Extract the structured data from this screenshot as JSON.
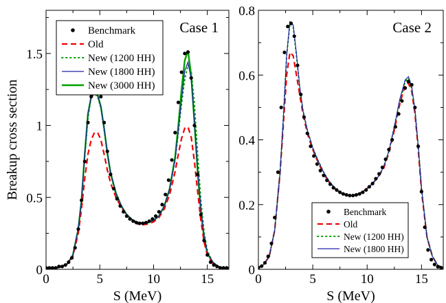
{
  "chart_data": [
    {
      "type": "line",
      "panel_label": "Case 1",
      "xlabel": "S (MeV)",
      "ylabel": "Breakup cross section",
      "xlim": [
        0,
        17
      ],
      "ylim": [
        0,
        1.8
      ],
      "xticks": [
        0,
        5,
        10,
        15
      ],
      "xtick_labels": [
        "0",
        "5",
        "10",
        "15"
      ],
      "yticks": [
        0,
        0.5,
        1,
        1.5
      ],
      "ytick_labels": [
        "0",
        "0.5",
        "1",
        "1.5"
      ],
      "grid": false,
      "legend_position": "top-left",
      "series": [
        {
          "name": "Benchmark",
          "style": "dots",
          "color": "#000000",
          "x": [
            0.0,
            0.3,
            0.6,
            0.9,
            1.2,
            1.5,
            1.8,
            2.1,
            2.4,
            2.7,
            3.0,
            3.3,
            3.6,
            3.9,
            4.2,
            4.5,
            4.8,
            5.1,
            5.4,
            5.7,
            6.0,
            6.3,
            6.6,
            6.9,
            7.2,
            7.5,
            7.8,
            8.1,
            8.4,
            8.7,
            9.0,
            9.3,
            9.6,
            9.9,
            10.2,
            10.5,
            10.8,
            11.1,
            11.4,
            11.7,
            12.0,
            12.3,
            12.6,
            12.9,
            13.2,
            13.5,
            13.8,
            14.1,
            14.4,
            14.7,
            15.0,
            15.3,
            15.6,
            15.9,
            16.2,
            16.5,
            16.8
          ],
          "values": [
            0.01,
            0.01,
            0.01,
            0.01,
            0.02,
            0.02,
            0.03,
            0.05,
            0.08,
            0.15,
            0.28,
            0.48,
            0.75,
            1.02,
            1.2,
            1.26,
            1.27,
            1.2,
            1.02,
            0.82,
            0.66,
            0.56,
            0.49,
            0.44,
            0.4,
            0.37,
            0.35,
            0.335,
            0.325,
            0.32,
            0.32,
            0.325,
            0.335,
            0.35,
            0.37,
            0.4,
            0.45,
            0.52,
            0.62,
            0.76,
            0.95,
            1.16,
            1.37,
            1.5,
            1.51,
            1.33,
            1.0,
            0.66,
            0.38,
            0.2,
            0.1,
            0.05,
            0.03,
            0.02,
            0.01,
            0.01,
            0.01
          ]
        },
        {
          "name": "Old",
          "style": "dashed",
          "color": "#ee0000",
          "x": [
            0.0,
            0.5,
            1.0,
            1.5,
            2.0,
            2.5,
            3.0,
            3.3,
            3.6,
            3.9,
            4.2,
            4.5,
            4.8,
            5.1,
            5.4,
            5.7,
            6.0,
            6.5,
            7.0,
            7.5,
            8.0,
            8.5,
            9.0,
            9.5,
            10.0,
            10.5,
            11.0,
            11.5,
            12.0,
            12.3,
            12.6,
            12.9,
            13.2,
            13.5,
            13.8,
            14.1,
            14.4,
            14.7,
            15.0,
            15.5,
            16.0,
            16.5,
            17.0
          ],
          "values": [
            0.01,
            0.01,
            0.01,
            0.02,
            0.04,
            0.09,
            0.25,
            0.42,
            0.63,
            0.8,
            0.9,
            0.95,
            0.95,
            0.9,
            0.8,
            0.69,
            0.6,
            0.5,
            0.43,
            0.38,
            0.34,
            0.315,
            0.31,
            0.315,
            0.33,
            0.36,
            0.42,
            0.52,
            0.68,
            0.8,
            0.91,
            0.98,
            0.99,
            0.92,
            0.75,
            0.54,
            0.34,
            0.19,
            0.1,
            0.04,
            0.02,
            0.01,
            0.01
          ]
        },
        {
          "name": "New (1200 HH)",
          "style": "dotted",
          "color": "#00a000",
          "x": [
            0.0,
            0.5,
            1.0,
            1.5,
            2.0,
            2.5,
            3.0,
            3.3,
            3.6,
            3.9,
            4.2,
            4.5,
            4.8,
            5.1,
            5.4,
            5.7,
            6.0,
            6.5,
            7.0,
            7.5,
            8.0,
            8.5,
            9.0,
            9.5,
            10.0,
            10.5,
            11.0,
            11.5,
            12.0,
            12.3,
            12.6,
            12.9,
            13.2,
            13.5,
            13.8,
            14.1,
            14.4,
            14.7,
            15.0,
            15.5,
            16.0,
            16.5,
            17.0
          ],
          "values": [
            0.01,
            0.01,
            0.01,
            0.02,
            0.04,
            0.1,
            0.28,
            0.48,
            0.78,
            1.05,
            1.2,
            1.22,
            1.2,
            1.12,
            0.97,
            0.8,
            0.66,
            0.52,
            0.44,
            0.38,
            0.345,
            0.325,
            0.32,
            0.325,
            0.34,
            0.37,
            0.44,
            0.56,
            0.76,
            0.95,
            1.15,
            1.32,
            1.42,
            1.38,
            1.15,
            0.8,
            0.48,
            0.26,
            0.13,
            0.05,
            0.02,
            0.01,
            0.01
          ]
        },
        {
          "name": "New (1800 HH)",
          "style": "solid-thin",
          "color": "#2222aa",
          "x": [
            0.0,
            0.5,
            1.0,
            1.5,
            2.0,
            2.5,
            3.0,
            3.3,
            3.6,
            3.9,
            4.2,
            4.5,
            4.8,
            5.1,
            5.4,
            5.7,
            6.0,
            6.5,
            7.0,
            7.5,
            8.0,
            8.5,
            9.0,
            9.5,
            10.0,
            10.5,
            11.0,
            11.5,
            12.0,
            12.3,
            12.6,
            12.9,
            13.2,
            13.5,
            13.8,
            14.1,
            14.4,
            14.7,
            15.0,
            15.5,
            16.0,
            16.5,
            17.0
          ],
          "values": [
            0.01,
            0.01,
            0.01,
            0.02,
            0.04,
            0.1,
            0.28,
            0.48,
            0.8,
            1.08,
            1.2,
            1.22,
            1.21,
            1.13,
            0.98,
            0.81,
            0.67,
            0.53,
            0.44,
            0.38,
            0.345,
            0.325,
            0.32,
            0.325,
            0.34,
            0.37,
            0.44,
            0.56,
            0.76,
            0.96,
            1.18,
            1.38,
            1.44,
            1.32,
            1.04,
            0.7,
            0.42,
            0.23,
            0.12,
            0.05,
            0.02,
            0.01,
            0.01
          ]
        },
        {
          "name": "New (3000 HH)",
          "style": "solid-thick",
          "color": "#00a000",
          "x": [
            0.0,
            0.5,
            1.0,
            1.5,
            2.0,
            2.5,
            3.0,
            3.3,
            3.6,
            3.9,
            4.2,
            4.5,
            4.8,
            5.1,
            5.4,
            5.7,
            6.0,
            6.5,
            7.0,
            7.5,
            8.0,
            8.5,
            9.0,
            9.5,
            10.0,
            10.5,
            11.0,
            11.5,
            12.0,
            12.3,
            12.6,
            12.9,
            13.2,
            13.5,
            13.8,
            14.1,
            14.4,
            14.7,
            15.0,
            15.5,
            16.0,
            16.5,
            17.0
          ],
          "values": [
            0.01,
            0.01,
            0.01,
            0.02,
            0.04,
            0.1,
            0.28,
            0.48,
            0.8,
            1.08,
            1.2,
            1.22,
            1.21,
            1.13,
            0.98,
            0.81,
            0.67,
            0.53,
            0.44,
            0.38,
            0.345,
            0.325,
            0.32,
            0.325,
            0.34,
            0.37,
            0.44,
            0.56,
            0.78,
            1.0,
            1.25,
            1.45,
            1.52,
            1.35,
            1.02,
            0.68,
            0.4,
            0.22,
            0.11,
            0.05,
            0.02,
            0.01,
            0.01
          ]
        }
      ]
    },
    {
      "type": "line",
      "panel_label": "Case 2",
      "xlabel": "S (MeV)",
      "ylabel": "",
      "xlim": [
        0,
        17
      ],
      "ylim": [
        0,
        0.8
      ],
      "xticks": [
        0,
        5,
        10,
        15
      ],
      "xtick_labels": [
        "0",
        "5",
        "10",
        "15"
      ],
      "yticks": [
        0,
        0.2,
        0.4,
        0.6,
        0.8
      ],
      "ytick_labels": [
        "0",
        "0.2",
        "0.4",
        "0.6",
        "0.8"
      ],
      "grid": false,
      "legend_position": "bottom-right",
      "series": [
        {
          "name": "Benchmark",
          "style": "dots",
          "color": "#000000",
          "x": [
            0.0,
            0.3,
            0.6,
            0.9,
            1.2,
            1.5,
            1.8,
            2.1,
            2.4,
            2.7,
            3.0,
            3.3,
            3.6,
            3.9,
            4.2,
            4.5,
            4.8,
            5.1,
            5.4,
            5.7,
            6.0,
            6.3,
            6.6,
            6.9,
            7.2,
            7.5,
            7.8,
            8.1,
            8.4,
            8.7,
            9.0,
            9.3,
            9.6,
            9.9,
            10.2,
            10.5,
            10.8,
            11.1,
            11.4,
            11.7,
            12.0,
            12.3,
            12.6,
            12.9,
            13.2,
            13.5,
            13.8,
            14.1,
            14.4,
            14.7,
            15.0,
            15.3,
            15.6,
            15.9,
            16.2,
            16.5,
            16.8
          ],
          "values": [
            0.005,
            0.01,
            0.02,
            0.04,
            0.08,
            0.16,
            0.3,
            0.5,
            0.67,
            0.75,
            0.76,
            0.72,
            0.63,
            0.54,
            0.47,
            0.42,
            0.38,
            0.35,
            0.325,
            0.305,
            0.29,
            0.275,
            0.263,
            0.252,
            0.245,
            0.238,
            0.233,
            0.23,
            0.228,
            0.228,
            0.23,
            0.233,
            0.238,
            0.245,
            0.255,
            0.265,
            0.28,
            0.295,
            0.315,
            0.34,
            0.37,
            0.4,
            0.44,
            0.48,
            0.52,
            0.56,
            0.58,
            0.57,
            0.5,
            0.38,
            0.24,
            0.13,
            0.06,
            0.03,
            0.015,
            0.008,
            0.005
          ]
        },
        {
          "name": "Old",
          "style": "dashed",
          "color": "#ee0000",
          "x": [
            0.0,
            0.5,
            1.0,
            1.5,
            2.0,
            2.3,
            2.6,
            2.9,
            3.2,
            3.5,
            3.8,
            4.1,
            4.5,
            5.0,
            5.5,
            6.0,
            6.5,
            7.0,
            7.5,
            8.0,
            8.5,
            9.0,
            9.5,
            10.0,
            10.5,
            11.0,
            11.5,
            12.0,
            12.5,
            13.0,
            13.5,
            13.8,
            14.1,
            14.4,
            14.7,
            15.0,
            15.5,
            16.0,
            16.5,
            17.0
          ],
          "values": [
            0.005,
            0.015,
            0.04,
            0.12,
            0.3,
            0.45,
            0.6,
            0.67,
            0.66,
            0.6,
            0.54,
            0.48,
            0.42,
            0.37,
            0.33,
            0.295,
            0.27,
            0.25,
            0.237,
            0.23,
            0.227,
            0.23,
            0.238,
            0.25,
            0.265,
            0.285,
            0.31,
            0.36,
            0.43,
            0.51,
            0.57,
            0.575,
            0.55,
            0.48,
            0.37,
            0.24,
            0.1,
            0.04,
            0.012,
            0.005
          ]
        },
        {
          "name": "New (1200 HH)",
          "style": "dotted",
          "color": "#00a000",
          "x": [
            0.0,
            0.5,
            1.0,
            1.5,
            2.0,
            2.3,
            2.6,
            2.9,
            3.2,
            3.5,
            3.8,
            4.1,
            4.5,
            5.0,
            5.5,
            6.0,
            6.5,
            7.0,
            7.5,
            8.0,
            8.5,
            9.0,
            9.5,
            10.0,
            10.5,
            11.0,
            11.5,
            12.0,
            12.5,
            13.0,
            13.5,
            13.8,
            14.1,
            14.4,
            14.7,
            15.0,
            15.5,
            16.0,
            16.5,
            17.0
          ],
          "values": [
            0.005,
            0.015,
            0.04,
            0.12,
            0.3,
            0.47,
            0.66,
            0.76,
            0.75,
            0.66,
            0.56,
            0.49,
            0.43,
            0.375,
            0.335,
            0.3,
            0.272,
            0.252,
            0.238,
            0.23,
            0.227,
            0.23,
            0.238,
            0.25,
            0.265,
            0.285,
            0.315,
            0.365,
            0.44,
            0.52,
            0.58,
            0.59,
            0.56,
            0.49,
            0.38,
            0.25,
            0.1,
            0.04,
            0.012,
            0.005
          ]
        },
        {
          "name": "New (1800 HH)",
          "style": "solid-thin",
          "color": "#2222aa",
          "x": [
            0.0,
            0.5,
            1.0,
            1.5,
            2.0,
            2.3,
            2.6,
            2.9,
            3.2,
            3.5,
            3.8,
            4.1,
            4.5,
            5.0,
            5.5,
            6.0,
            6.5,
            7.0,
            7.5,
            8.0,
            8.5,
            9.0,
            9.5,
            10.0,
            10.5,
            11.0,
            11.5,
            12.0,
            12.5,
            13.0,
            13.5,
            13.8,
            14.1,
            14.4,
            14.7,
            15.0,
            15.5,
            16.0,
            16.5,
            17.0
          ],
          "values": [
            0.005,
            0.015,
            0.04,
            0.12,
            0.3,
            0.47,
            0.66,
            0.765,
            0.755,
            0.665,
            0.565,
            0.49,
            0.43,
            0.375,
            0.335,
            0.3,
            0.272,
            0.252,
            0.238,
            0.23,
            0.227,
            0.23,
            0.238,
            0.25,
            0.265,
            0.285,
            0.315,
            0.365,
            0.44,
            0.525,
            0.585,
            0.595,
            0.565,
            0.49,
            0.38,
            0.25,
            0.1,
            0.04,
            0.012,
            0.005
          ]
        }
      ]
    }
  ]
}
